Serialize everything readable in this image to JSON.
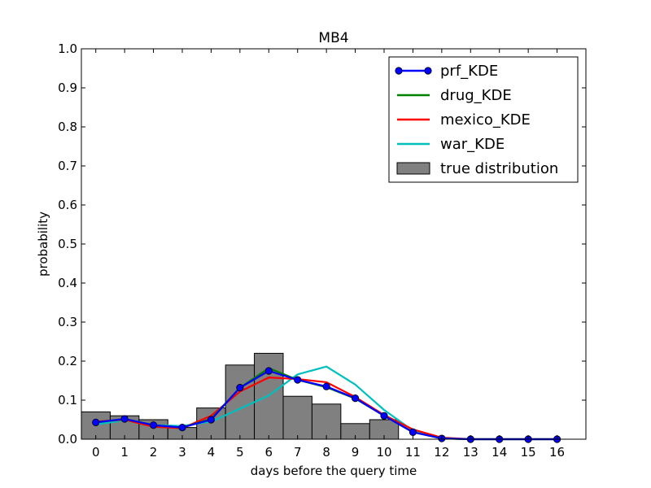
{
  "chart_data": {
    "type": "line",
    "title": "MB4",
    "xlabel": "days before the query time",
    "ylabel": "probability",
    "xlim": [
      -0.5,
      17
    ],
    "ylim": [
      0,
      1.0
    ],
    "x_ticks": [
      "0",
      "1",
      "2",
      "3",
      "4",
      "5",
      "6",
      "7",
      "8",
      "9",
      "10",
      "11",
      "12",
      "13",
      "14",
      "15",
      "16"
    ],
    "y_ticks": [
      "0.0",
      "0.1",
      "0.2",
      "0.3",
      "0.4",
      "0.5",
      "0.6",
      "0.7",
      "0.8",
      "0.9",
      "1.0"
    ],
    "legend_position": "top-right",
    "x": [
      0,
      1,
      2,
      3,
      4,
      5,
      6,
      7,
      8,
      9,
      10,
      11,
      12,
      13,
      14,
      15,
      16
    ],
    "histogram": {
      "name": "true distribution",
      "color": "#808080",
      "values": [
        0.07,
        0.06,
        0.05,
        0.03,
        0.08,
        0.19,
        0.22,
        0.11,
        0.09,
        0.04,
        0.05,
        0,
        0,
        0,
        0,
        0,
        0
      ]
    },
    "series": [
      {
        "name": "prf_KDE",
        "color": "#0000ff",
        "marker": "circle",
        "values": [
          0.043,
          0.052,
          0.036,
          0.03,
          0.05,
          0.132,
          0.175,
          0.152,
          0.135,
          0.105,
          0.06,
          0.018,
          0.002,
          0,
          0,
          0,
          0
        ]
      },
      {
        "name": "drug_KDE",
        "color": "#008000",
        "marker": "none",
        "values": [
          0.043,
          0.052,
          0.036,
          0.03,
          0.052,
          0.132,
          0.182,
          0.152,
          0.133,
          0.104,
          0.06,
          0.018,
          0.002,
          0,
          0,
          0,
          0
        ]
      },
      {
        "name": "mexico_KDE",
        "color": "#ff0000",
        "marker": "none",
        "values": [
          0.045,
          0.05,
          0.032,
          0.028,
          0.06,
          0.122,
          0.158,
          0.154,
          0.146,
          0.108,
          0.062,
          0.025,
          0.004,
          0,
          0,
          0,
          0
        ]
      },
      {
        "name": "war_KDE",
        "color": "#00bfbf",
        "marker": "none",
        "values": [
          0.038,
          0.048,
          0.036,
          0.034,
          0.045,
          0.078,
          0.112,
          0.166,
          0.186,
          0.14,
          0.075,
          0.022,
          0.002,
          0,
          0,
          0,
          0
        ]
      }
    ]
  }
}
